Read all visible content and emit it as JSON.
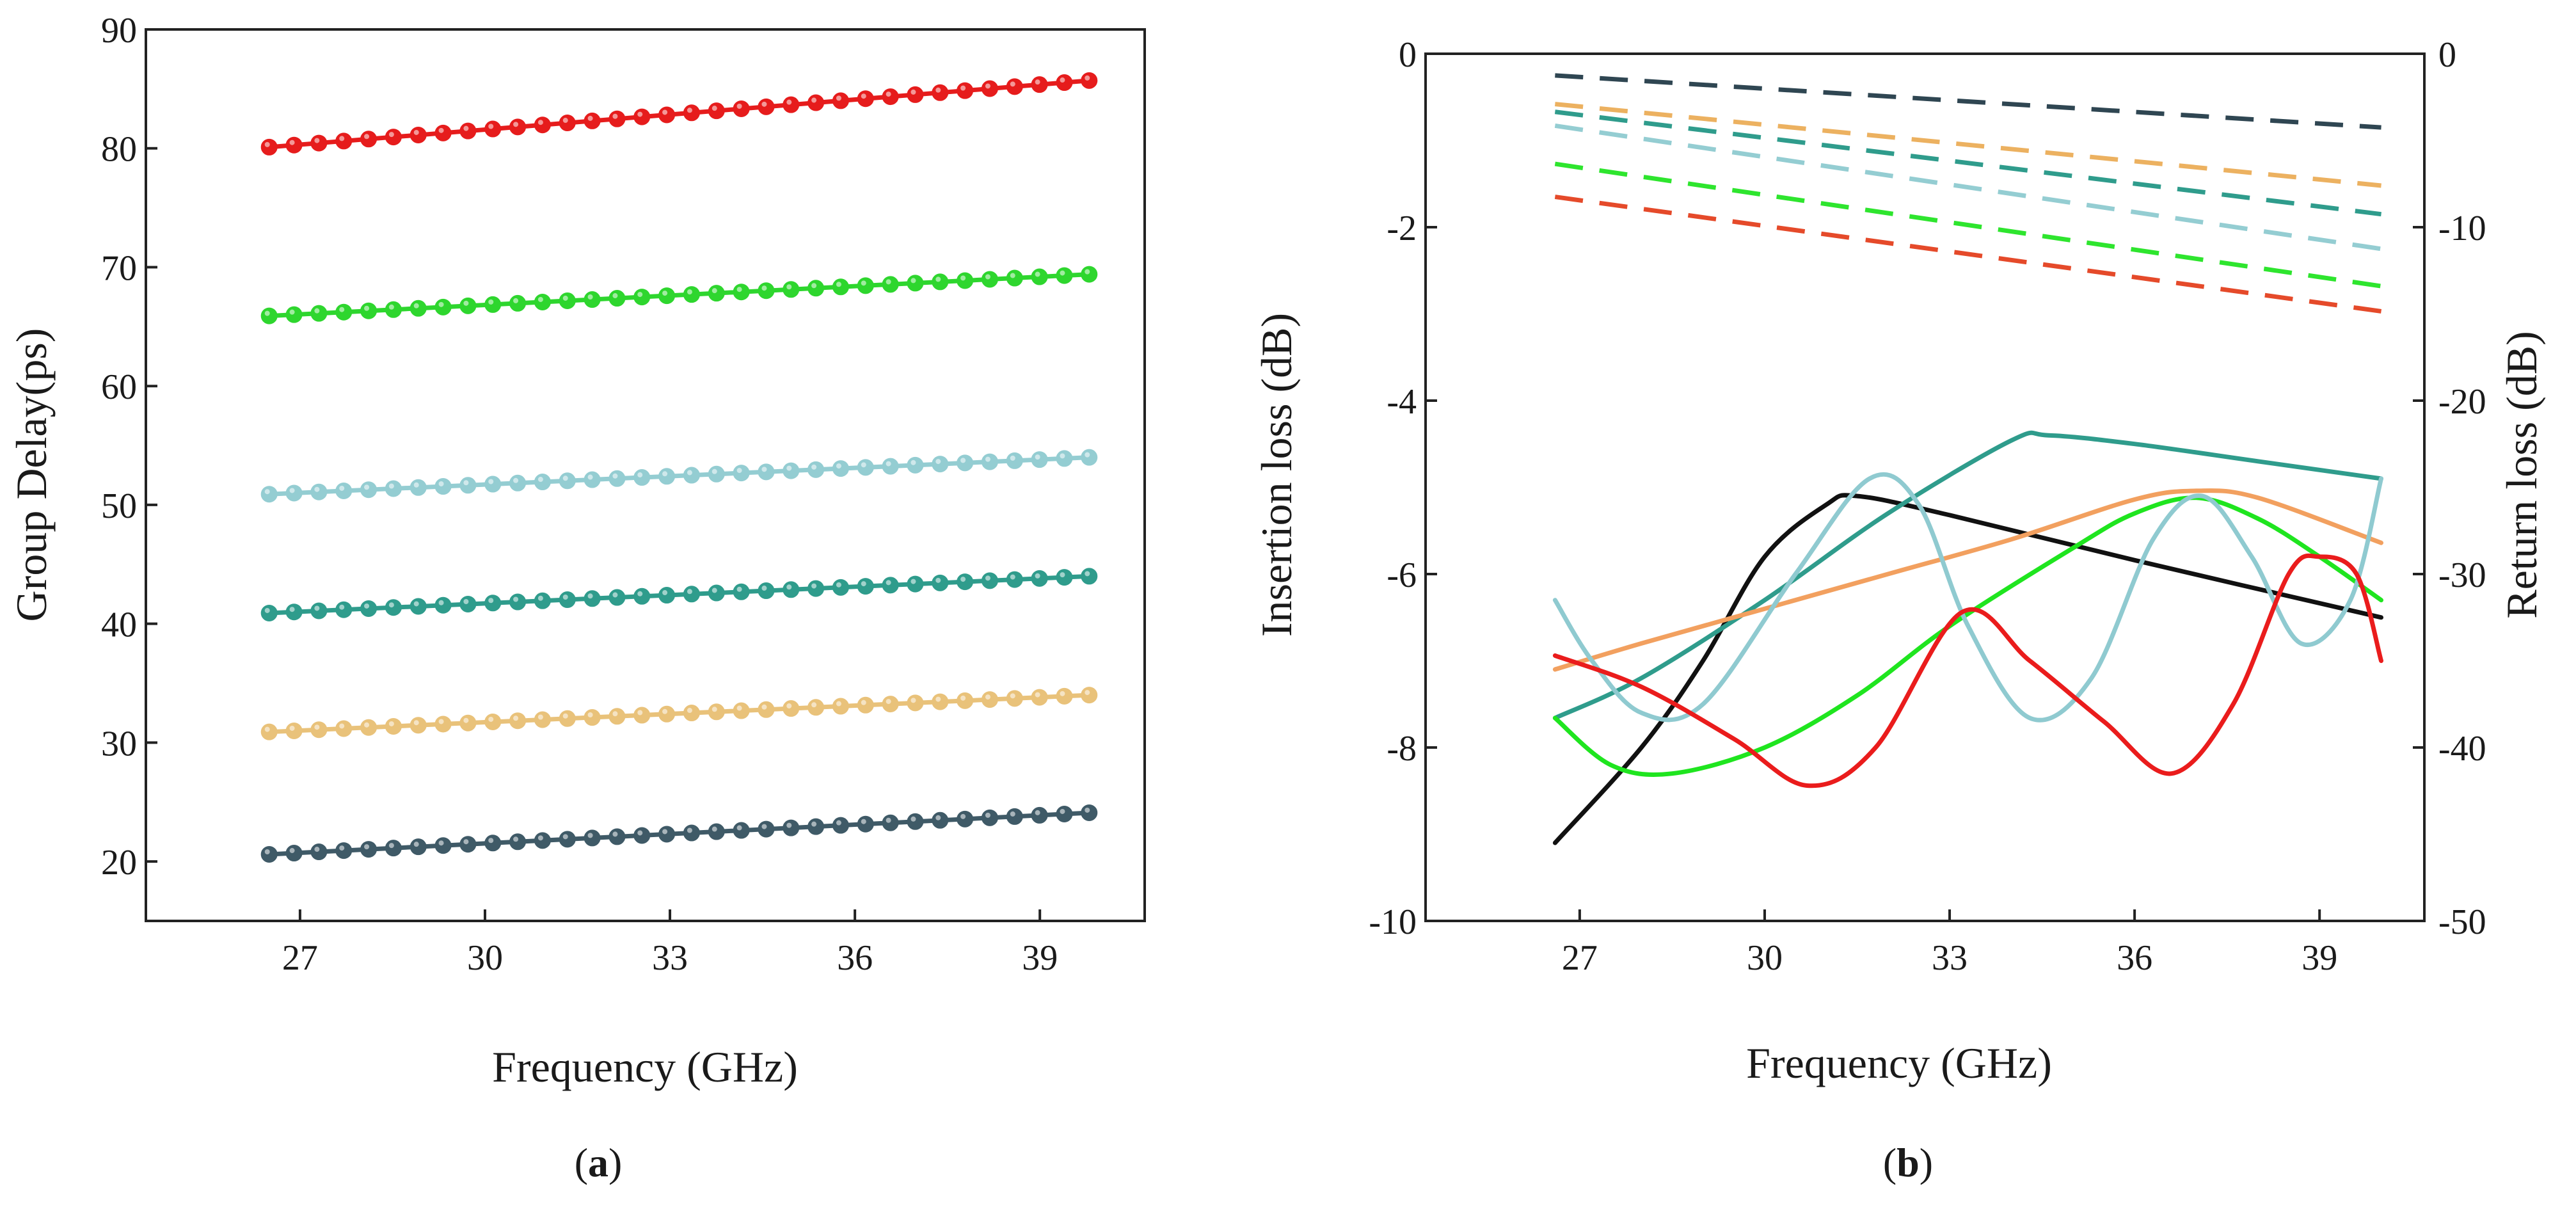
{
  "chart_data": [
    {
      "type": "line",
      "panel": "a",
      "panel_label": "(a)",
      "panel_letter": "a",
      "xlabel": "Frequency (GHz)",
      "ylabel": "Group Delay(ps)",
      "xlim": [
        24.5,
        40.7
      ],
      "ylim": [
        15,
        90
      ],
      "xticks": [
        27,
        30,
        33,
        36,
        39
      ],
      "yticks": [
        20,
        30,
        40,
        50,
        60,
        70,
        80,
        90
      ],
      "markers": "circle",
      "x_start": 26.5,
      "x_end": 39.8,
      "n_points": 34,
      "series": [
        {
          "name": "series-red",
          "color": "#e61c1c",
          "start": 80.1,
          "end": 85.7
        },
        {
          "name": "series-green",
          "color": "#2ed62e",
          "start": 65.9,
          "end": 69.4
        },
        {
          "name": "series-light-blue",
          "color": "#94cdd2",
          "start": 50.9,
          "end": 54.0
        },
        {
          "name": "series-teal",
          "color": "#2f9c8c",
          "start": 40.9,
          "end": 44.0
        },
        {
          "name": "series-yellow",
          "color": "#e9c27a",
          "start": 30.9,
          "end": 34.0
        },
        {
          "name": "series-dark-slate",
          "color": "#3f5a67",
          "start": 20.6,
          "end": 24.1
        }
      ]
    },
    {
      "type": "line",
      "panel": "b",
      "panel_label": "(b)",
      "panel_letter": "b",
      "xlabel": "Frequency (GHz)",
      "ylabel": "Insertion loss (dB)",
      "y2label": "Return loss (dB)",
      "xlim": [
        24.5,
        40.7
      ],
      "ylim": [
        -10,
        0
      ],
      "y2lim": [
        -50,
        0
      ],
      "xticks": [
        27,
        30,
        33,
        36,
        39
      ],
      "yticks": [
        0,
        -2,
        -4,
        -6,
        -8,
        -10
      ],
      "y2ticks": [
        0,
        -10,
        -20,
        -30,
        -40,
        -50
      ],
      "insertion_loss": [
        {
          "name": "il-dark-slate",
          "color": "#2f4652",
          "dash": true,
          "x": [
            26.6,
            40
          ],
          "y": [
            -0.25,
            -0.85
          ]
        },
        {
          "name": "il-orange",
          "color": "#ecb160",
          "dash": true,
          "x": [
            26.6,
            40
          ],
          "y": [
            -0.58,
            -1.52
          ]
        },
        {
          "name": "il-teal",
          "color": "#2f9c8c",
          "dash": true,
          "x": [
            26.6,
            40
          ],
          "y": [
            -0.67,
            -1.85
          ]
        },
        {
          "name": "il-light-blue",
          "color": "#94cdd2",
          "dash": true,
          "x": [
            26.6,
            40
          ],
          "y": [
            -0.83,
            -2.25
          ]
        },
        {
          "name": "il-green",
          "color": "#2ee52e",
          "dash": true,
          "x": [
            26.6,
            40
          ],
          "y": [
            -1.27,
            -2.68
          ]
        },
        {
          "name": "il-red",
          "color": "#e54a2a",
          "dash": true,
          "x": [
            26.6,
            40
          ],
          "y": [
            -1.65,
            -2.97
          ]
        }
      ],
      "return_loss": [
        {
          "name": "rl-black",
          "color": "#111111",
          "x": [
            26.6,
            28.0,
            29.0,
            30.0,
            31.0,
            31.5,
            33.0,
            36.0,
            40.0
          ],
          "y": [
            -45.5,
            -40.0,
            -35.0,
            -29.0,
            -26.0,
            -25.5,
            -26.6,
            -29.2,
            -32.5
          ]
        },
        {
          "name": "rl-teal",
          "color": "#2f9c8c",
          "x": [
            26.6,
            28.0,
            30.0,
            32.0,
            34.0,
            34.6,
            36.0,
            38.0,
            40.0
          ],
          "y": [
            -38.3,
            -36.0,
            -31.5,
            -26.5,
            -22.3,
            -22.0,
            -22.5,
            -23.5,
            -24.5
          ]
        },
        {
          "name": "rl-orange",
          "color": "#f2a05f",
          "x": [
            26.6,
            28.0,
            30.0,
            32.0,
            34.0,
            36.0,
            37.0,
            38.0,
            40.0
          ],
          "y": [
            -35.5,
            -34.0,
            -32.0,
            -30.0,
            -28.0,
            -25.7,
            -25.2,
            -25.6,
            -28.2
          ]
        },
        {
          "name": "rl-green",
          "color": "#1fe51f",
          "x": [
            26.6,
            27.5,
            28.5,
            30.0,
            31.5,
            33.0,
            35.0,
            36.0,
            37.0,
            38.0,
            39.0,
            40.0
          ],
          "y": [
            -38.3,
            -41.0,
            -41.5,
            -40.0,
            -37.0,
            -33.0,
            -28.5,
            -26.5,
            -25.6,
            -26.8,
            -29.0,
            -31.5
          ]
        },
        {
          "name": "rl-light-blue",
          "color": "#8fcad0",
          "x": [
            26.6,
            27.2,
            28.0,
            29.0,
            30.5,
            31.7,
            32.5,
            33.3,
            34.3,
            35.3,
            36.3,
            37.1,
            37.9,
            38.7,
            39.5,
            40.0
          ],
          "y": [
            -31.5,
            -35.0,
            -38.0,
            -37.5,
            -30.0,
            -24.5,
            -26.0,
            -33.0,
            -38.3,
            -36.0,
            -28.0,
            -25.5,
            -29.0,
            -34.0,
            -31.5,
            -24.5
          ]
        },
        {
          "name": "rl-red",
          "color": "#ea1c1c",
          "x": [
            26.6,
            28.0,
            29.5,
            30.7,
            31.8,
            33.2,
            34.3,
            35.5,
            36.6,
            37.6,
            38.5,
            39.0,
            39.6,
            40.0
          ],
          "y": [
            -34.7,
            -36.5,
            -39.5,
            -42.2,
            -40.0,
            -32.2,
            -35.0,
            -38.5,
            -41.5,
            -37.5,
            -30.0,
            -29.0,
            -30.0,
            -35.0
          ]
        }
      ]
    }
  ]
}
